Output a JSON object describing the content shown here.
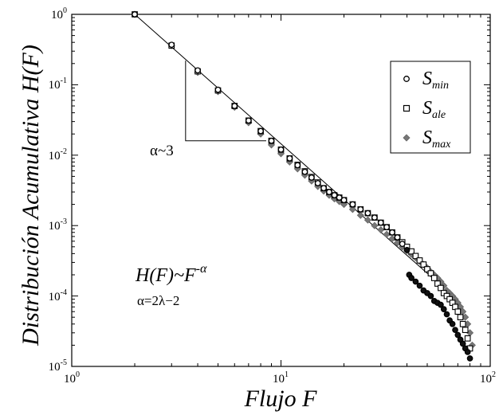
{
  "chart_data": {
    "type": "scatter",
    "xscale": "log",
    "yscale": "log",
    "xlim": [
      1,
      100
    ],
    "ylim": [
      1e-05,
      1
    ],
    "xlabel": "Flujo F",
    "ylabel": "Distribución Acumulativa H(F)",
    "x_ticks": [
      "10^0",
      "10^1",
      "10^2"
    ],
    "y_ticks": [
      "10^0",
      "10^-1",
      "10^-2",
      "10^-3",
      "10^-4",
      "10^-5"
    ],
    "grid": false,
    "legend_position": "top-right",
    "legend": [
      {
        "name": "S",
        "sub": "min",
        "marker": "circle"
      },
      {
        "name": "S",
        "sub": "ale",
        "marker": "square"
      },
      {
        "name": "S",
        "sub": "max",
        "marker": "diamond"
      }
    ],
    "annotations": {
      "formula_main": "H(F)~F",
      "formula_exp": "-α",
      "formula_sub": "α=2λ−2",
      "slope_label": "α~3"
    },
    "fit_line": {
      "x": [
        2,
        60
      ],
      "y": [
        1,
        0.00013
      ]
    },
    "slope_triangle": {
      "x": [
        3.5,
        8.5
      ],
      "y": [
        0.22,
        0.016
      ]
    },
    "series": [
      {
        "name": "S_min",
        "marker": "circle",
        "x": [
          2,
          3,
          4,
          5,
          6,
          7,
          8,
          9,
          10,
          11,
          12,
          13,
          14,
          15,
          16,
          17,
          18,
          19,
          20,
          22,
          24,
          26,
          28,
          30,
          32,
          34,
          36,
          38,
          40,
          41,
          42,
          44,
          46,
          48,
          50,
          52,
          54,
          56,
          58,
          60,
          62,
          64,
          66,
          68,
          70,
          72,
          74,
          76,
          78,
          80
        ],
        "y": [
          1,
          0.37,
          0.16,
          0.085,
          0.05,
          0.031,
          0.022,
          0.016,
          0.012,
          0.009,
          0.0072,
          0.0058,
          0.0048,
          0.004,
          0.0034,
          0.003,
          0.0027,
          0.0025,
          0.0023,
          0.002,
          0.0017,
          0.0015,
          0.0013,
          0.0011,
          0.00095,
          0.0008,
          0.00068,
          0.00055,
          0.00045,
          0.0002,
          0.00018,
          0.00016,
          0.00014,
          0.00012,
          0.00011,
          0.0001,
          8.5e-05,
          8e-05,
          7.5e-05,
          6.5e-05,
          5.5e-05,
          4.5e-05,
          4e-05,
          3.3e-05,
          2.8e-05,
          2.4e-05,
          2.1e-05,
          1.8e-05,
          1.6e-05,
          1.3e-05
        ]
      },
      {
        "name": "S_ale",
        "marker": "square",
        "x": [
          2,
          3,
          4,
          5,
          6,
          7,
          8,
          9,
          10,
          11,
          12,
          13,
          14,
          15,
          16,
          17,
          18,
          19,
          20,
          22,
          24,
          26,
          28,
          30,
          32,
          34,
          36,
          38,
          40,
          42,
          44,
          46,
          48,
          50,
          52,
          54,
          56,
          58,
          60,
          62,
          64,
          66,
          68,
          70,
          72,
          74,
          76,
          78,
          80
        ],
        "y": [
          1,
          0.36,
          0.155,
          0.083,
          0.05,
          0.031,
          0.022,
          0.016,
          0.012,
          0.009,
          0.0073,
          0.0059,
          0.0049,
          0.0041,
          0.0034,
          0.003,
          0.0027,
          0.0025,
          0.0023,
          0.002,
          0.0017,
          0.0015,
          0.0013,
          0.0011,
          0.00095,
          0.0008,
          0.00068,
          0.00058,
          0.0005,
          0.00043,
          0.00037,
          0.00032,
          0.00028,
          0.00024,
          0.00021,
          0.00018,
          0.00015,
          0.00013,
          0.00011,
          0.0001,
          9e-05,
          8e-05,
          7e-05,
          6e-05,
          5e-05,
          4e-05,
          3.3e-05,
          2.5e-05,
          1.8e-05
        ]
      },
      {
        "name": "S_max",
        "marker": "diamond",
        "x": [
          2,
          3,
          4,
          5,
          6,
          7,
          8,
          9,
          10,
          11,
          12,
          13,
          14,
          15,
          16,
          17,
          18,
          19,
          20,
          22,
          24,
          26,
          28,
          30,
          32,
          34,
          36,
          38,
          40,
          42,
          44,
          46,
          48,
          50,
          52,
          54,
          56,
          58,
          60,
          62,
          64,
          66,
          68,
          70,
          72,
          74,
          76,
          78,
          80,
          82
        ],
        "y": [
          1,
          0.36,
          0.15,
          0.08,
          0.048,
          0.029,
          0.02,
          0.014,
          0.0105,
          0.008,
          0.0064,
          0.0052,
          0.0043,
          0.0036,
          0.0031,
          0.0027,
          0.0024,
          0.0022,
          0.002,
          0.0017,
          0.0014,
          0.0012,
          0.001,
          0.00087,
          0.00075,
          0.00065,
          0.00057,
          0.0005,
          0.00044,
          0.00039,
          0.00035,
          0.00031,
          0.00028,
          0.00025,
          0.00022,
          0.0002,
          0.00018,
          0.00016,
          0.00014,
          0.00012,
          0.00011,
          0.0001,
          9e-05,
          8e-05,
          7e-05,
          6e-05,
          5e-05,
          4e-05,
          3e-05,
          2e-05
        ]
      }
    ]
  }
}
